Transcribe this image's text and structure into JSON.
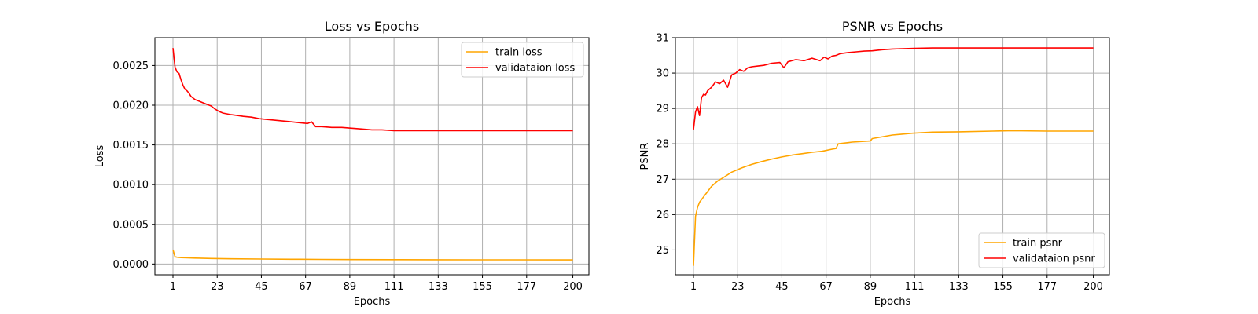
{
  "colors": {
    "train": "#ffa500",
    "validation": "#ff0000"
  },
  "chart_data": [
    {
      "type": "line",
      "title": "Loss vs Epochs",
      "xlabel": "Epochs",
      "ylabel": "Loss",
      "grid": true,
      "legend_position": "top-right",
      "xlim": [
        -8,
        208
      ],
      "ylim": [
        -0.000135,
        0.00285
      ],
      "xticks": [
        1,
        23,
        45,
        67,
        89,
        111,
        133,
        155,
        177,
        200
      ],
      "xtick_labels": [
        "1",
        "23",
        "45",
        "67",
        "89",
        "111",
        "133",
        "155",
        "177",
        "200"
      ],
      "yticks": [
        0.0,
        0.0005,
        0.001,
        0.0015,
        0.002,
        0.0025
      ],
      "ytick_labels": [
        "0.0000",
        "0.0005",
        "0.0010",
        "0.0015",
        "0.0020",
        "0.0025"
      ],
      "series": [
        {
          "name": "train loss",
          "color": "#ffa500",
          "x": [
            1,
            2,
            3,
            5,
            8,
            12,
            20,
            30,
            45,
            60,
            75,
            90,
            110,
            130,
            150,
            170,
            200
          ],
          "y": [
            0.00018,
            9e-05,
            8.5e-05,
            8e-05,
            7.8e-05,
            7.5e-05,
            7e-05,
            6.6e-05,
            6.3e-05,
            6e-05,
            5.8e-05,
            5.6e-05,
            5.5e-05,
            5.4e-05,
            5.3e-05,
            5.3e-05,
            5.2e-05
          ]
        },
        {
          "name": "validataion loss",
          "color": "#ff0000",
          "x": [
            1,
            2,
            3,
            4,
            5,
            6,
            7,
            8,
            9,
            10,
            12,
            14,
            16,
            18,
            20,
            22,
            24,
            26,
            28,
            30,
            33,
            36,
            40,
            44,
            48,
            52,
            56,
            60,
            64,
            68,
            70,
            72,
            75,
            80,
            85,
            90,
            95,
            100,
            105,
            111,
            120,
            133,
            150,
            170,
            200
          ],
          "y": [
            0.00272,
            0.00248,
            0.00242,
            0.0024,
            0.00232,
            0.00225,
            0.0022,
            0.00218,
            0.00215,
            0.00211,
            0.00207,
            0.00205,
            0.00203,
            0.00201,
            0.00199,
            0.00195,
            0.00192,
            0.0019,
            0.00189,
            0.00188,
            0.00187,
            0.00186,
            0.00185,
            0.00183,
            0.00182,
            0.00181,
            0.0018,
            0.00179,
            0.00178,
            0.00177,
            0.00179,
            0.00173,
            0.00173,
            0.00172,
            0.00172,
            0.00171,
            0.0017,
            0.00169,
            0.00169,
            0.00168,
            0.00168,
            0.00168,
            0.00168,
            0.00168,
            0.00168
          ]
        }
      ]
    },
    {
      "type": "line",
      "title": "PSNR vs Epochs",
      "xlabel": "Epochs",
      "ylabel": "PSNR",
      "grid": true,
      "legend_position": "bottom-right",
      "xlim": [
        -8,
        208
      ],
      "ylim": [
        24.3,
        31.0
      ],
      "xticks": [
        1,
        23,
        45,
        67,
        89,
        111,
        133,
        155,
        177,
        200
      ],
      "xtick_labels": [
        "1",
        "23",
        "45",
        "67",
        "89",
        "111",
        "133",
        "155",
        "177",
        "200"
      ],
      "yticks": [
        25,
        26,
        27,
        28,
        29,
        30,
        31
      ],
      "ytick_labels": [
        "25",
        "26",
        "27",
        "28",
        "29",
        "30",
        "31"
      ],
      "series": [
        {
          "name": "train psnr",
          "color": "#ffa500",
          "x": [
            1,
            2,
            3,
            4,
            6,
            8,
            10,
            13,
            16,
            20,
            25,
            30,
            35,
            40,
            45,
            50,
            55,
            60,
            65,
            70,
            72,
            73,
            80,
            89,
            90,
            100,
            110,
            120,
            133,
            150,
            160,
            177,
            190,
            200
          ],
          "y": [
            24.55,
            25.95,
            26.2,
            26.35,
            26.5,
            26.65,
            26.8,
            26.95,
            27.05,
            27.2,
            27.32,
            27.42,
            27.5,
            27.57,
            27.63,
            27.68,
            27.72,
            27.76,
            27.79,
            27.85,
            27.87,
            28.0,
            28.05,
            28.08,
            28.15,
            28.25,
            28.3,
            28.33,
            28.34,
            28.36,
            28.37,
            28.36,
            28.36,
            28.36
          ]
        },
        {
          "name": "validataion psnr",
          "color": "#ff0000",
          "x": [
            1,
            2,
            3,
            4,
            5,
            6,
            7,
            8,
            10,
            12,
            14,
            16,
            18,
            20,
            22,
            24,
            26,
            28,
            30,
            33,
            36,
            40,
            44,
            46,
            48,
            52,
            56,
            60,
            64,
            66,
            68,
            70,
            72,
            74,
            78,
            82,
            86,
            90,
            95,
            100,
            105,
            111,
            120,
            133,
            150,
            170,
            200
          ],
          "y": [
            28.4,
            28.9,
            29.05,
            28.8,
            29.3,
            29.4,
            29.38,
            29.5,
            29.6,
            29.75,
            29.7,
            29.8,
            29.6,
            29.95,
            30.0,
            30.1,
            30.05,
            30.15,
            30.18,
            30.2,
            30.22,
            30.28,
            30.3,
            30.15,
            30.32,
            30.38,
            30.35,
            30.42,
            30.35,
            30.45,
            30.4,
            30.48,
            30.5,
            30.55,
            30.58,
            30.6,
            30.62,
            30.63,
            30.66,
            30.68,
            30.69,
            30.7,
            30.71,
            30.71,
            30.71,
            30.71,
            30.71
          ]
        }
      ]
    }
  ]
}
